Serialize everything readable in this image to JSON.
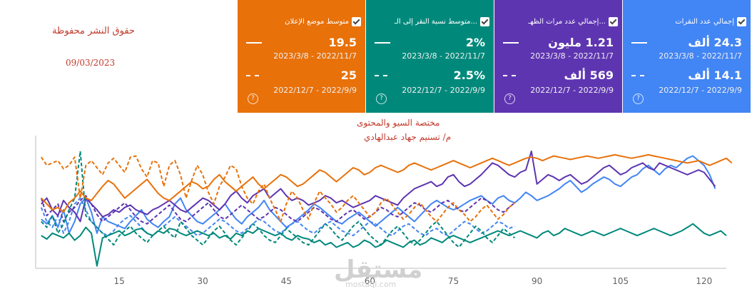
{
  "watermark": {
    "rights": "حقوق النشر محفوظة",
    "date": "09/03/2023",
    "author_line1": "مختصة السيو والمحتوى",
    "author_line2": "م/ تسنيم جهاد عبدالهادي",
    "logo": "مستقل",
    "logo_url": "mostaql.com"
  },
  "cards": [
    {
      "key": "clicks",
      "title": "إجمالي عدد النقرات",
      "color": "#4285f4",
      "current": "24.3 ألف",
      "current_range": "2023/3/8 - 2022/11/7",
      "previous": "14.1 ألف",
      "previous_range": "2022/12/7 - 2022/9/9",
      "left": 873
    },
    {
      "key": "impressions",
      "title": "إجمالي عدد مرات الظهـ...",
      "color": "#5e35b1",
      "current": "1.21 مليون",
      "current_range": "2023/3/8 - 2022/11/7",
      "previous": "569 ألف",
      "previous_range": "2022/12/7 - 2022/9/9",
      "left": 693
    },
    {
      "key": "ctr",
      "title": "متوسط نسبة النقر إلى الـ...",
      "color": "#00897b",
      "current": "2%",
      "current_range": "2023/3/8 - 2022/11/7",
      "previous": "2.5%",
      "previous_range": "2022/12/7 - 2022/9/9",
      "left": 513
    },
    {
      "key": "position",
      "title": "متوسط موضع الإعلان",
      "color": "#e8710a",
      "current": "19.5",
      "current_range": "2023/3/8 - 2022/11/7",
      "previous": "25",
      "previous_range": "2022/12/7 - 2022/9/9",
      "left": 333
    }
  ],
  "chart_data": {
    "type": "line",
    "x_ticks": [
      15,
      30,
      45,
      60,
      75,
      90,
      105,
      120
    ],
    "x_range": [
      0,
      124
    ],
    "y_range": [
      0,
      100
    ],
    "grid": false,
    "series": [
      {
        "metric": "clicks",
        "period": "current",
        "color": "#4285f4",
        "style": "solid",
        "values": [
          42,
          38,
          45,
          35,
          50,
          30,
          40,
          55,
          60,
          48,
          30,
          44,
          40,
          38,
          36,
          34,
          40,
          45,
          50,
          42,
          38,
          35,
          40,
          44,
          55,
          60,
          50,
          45,
          40,
          38,
          42,
          46,
          50,
          55,
          48,
          42,
          38,
          44,
          48,
          52,
          58,
          50,
          45,
          40,
          35,
          38,
          42,
          46,
          50,
          55,
          52,
          48,
          44,
          40,
          38,
          42,
          45,
          48,
          44,
          40,
          36,
          40,
          44,
          48,
          52,
          48,
          44,
          40,
          45,
          50,
          55,
          58,
          55,
          52,
          50,
          52,
          55,
          58,
          60,
          62,
          58,
          55,
          60,
          62,
          58,
          56,
          60,
          65,
          62,
          58,
          60,
          62,
          65,
          68,
          72,
          75,
          70,
          65,
          68,
          72,
          75,
          78,
          76,
          72,
          70,
          74,
          78,
          80,
          85,
          88,
          84,
          80,
          85,
          88,
          86,
          90,
          94,
          96,
          92,
          88,
          80,
          68
        ]
      },
      {
        "metric": "clicks",
        "period": "previous",
        "color": "#4285f4",
        "style": "dashed",
        "values": [
          52,
          40,
          35,
          45,
          30,
          40,
          55,
          60,
          50,
          40,
          35,
          30,
          28,
          32,
          38,
          42,
          45,
          40,
          35,
          30,
          28,
          32,
          36,
          40,
          44,
          40,
          36,
          32,
          28,
          30,
          34,
          38,
          42,
          40,
          36,
          32,
          30,
          34,
          38,
          42,
          40,
          36,
          32,
          30,
          34,
          38,
          40,
          36,
          32,
          30,
          34,
          38,
          40,
          36,
          32,
          30,
          28,
          32,
          36,
          40,
          38,
          34,
          30,
          28,
          32,
          36,
          38,
          34,
          30,
          28,
          32,
          34,
          30,
          28,
          32,
          36,
          40,
          38,
          34,
          30,
          32,
          36,
          40,
          38,
          34,
          36
        ]
      },
      {
        "metric": "impressions",
        "period": "current",
        "color": "#5e35b1",
        "style": "solid",
        "values": [
          55,
          60,
          50,
          45,
          58,
          52,
          48,
          40,
          60,
          55,
          50,
          44,
          46,
          50,
          48,
          52,
          54,
          50,
          48,
          46,
          50,
          52,
          55,
          58,
          54,
          50,
          48,
          52,
          56,
          60,
          58,
          54,
          50,
          55,
          62,
          66,
          60,
          56,
          62,
          65,
          68,
          60,
          64,
          68,
          62,
          58,
          60,
          58,
          54,
          56,
          58,
          62,
          60,
          56,
          58,
          55,
          52,
          54,
          56,
          58,
          62,
          60,
          58,
          56,
          54,
          60,
          64,
          68,
          70,
          72,
          74,
          70,
          72,
          78,
          80,
          74,
          70,
          72,
          76,
          80,
          85,
          90,
          88,
          84,
          80,
          78,
          82,
          84,
          100,
          72,
          76,
          80,
          78,
          75,
          78,
          80,
          76,
          72,
          74,
          78,
          82,
          86,
          88,
          84,
          80,
          82,
          86,
          88,
          90,
          86,
          84,
          90,
          88,
          86,
          84,
          82,
          80,
          82,
          84,
          82,
          76,
          70
        ]
      },
      {
        "metric": "impressions",
        "period": "previous",
        "color": "#5e35b1",
        "style": "dashed",
        "values": [
          60,
          45,
          50,
          55,
          40,
          48,
          52,
          58,
          62,
          55,
          46,
          40,
          44,
          48,
          52,
          56,
          50,
          44,
          40,
          38,
          42,
          46,
          50,
          54,
          48,
          42,
          40,
          44,
          48,
          52,
          56,
          50,
          44,
          42,
          46,
          50,
          54,
          50,
          46,
          42,
          44,
          48,
          52,
          50,
          46,
          42,
          40,
          44,
          48,
          52,
          50,
          46,
          42,
          40,
          44,
          48,
          50,
          46,
          42,
          44,
          48,
          52,
          50,
          46,
          44,
          48,
          52,
          56,
          54,
          50,
          48,
          52,
          56,
          58,
          54,
          50,
          48,
          52,
          56,
          60,
          58,
          54,
          50,
          48,
          52,
          56
        ]
      },
      {
        "metric": "ctr",
        "period": "current",
        "color": "#00897b",
        "style": "solid",
        "values": [
          28,
          25,
          30,
          28,
          26,
          30,
          24,
          28,
          35,
          30,
          2,
          26,
          28,
          30,
          32,
          28,
          30,
          33,
          34,
          30,
          28,
          32,
          30,
          34,
          33,
          30,
          28,
          30,
          32,
          30,
          28,
          30,
          26,
          28,
          25,
          30,
          28,
          32,
          30,
          34,
          32,
          30,
          28,
          30,
          26,
          24,
          28,
          26,
          25,
          22,
          24,
          20,
          22,
          18,
          20,
          22,
          18,
          20,
          24,
          22,
          18,
          20,
          24,
          22,
          20,
          18,
          22,
          24,
          20,
          22,
          26,
          24,
          22,
          26,
          28,
          26,
          24,
          22,
          24,
          26,
          28,
          30,
          32,
          30,
          28,
          30,
          32,
          30,
          28,
          26,
          30,
          32,
          28,
          30,
          34,
          32,
          30,
          28,
          30,
          32,
          30,
          28,
          30,
          32,
          34,
          32,
          30,
          28,
          30,
          32,
          34,
          32,
          30,
          28,
          30,
          32,
          35,
          38,
          34,
          30,
          28,
          30,
          32,
          28
        ]
      },
      {
        "metric": "ctr",
        "period": "previous",
        "color": "#00897b",
        "style": "dashed",
        "values": [
          40,
          35,
          45,
          30,
          38,
          50,
          60,
          100,
          45,
          40,
          35,
          30,
          25,
          20,
          28,
          32,
          36,
          30,
          26,
          22,
          28,
          32,
          36,
          30,
          26,
          40,
          34,
          28,
          24,
          20,
          26,
          32,
          36,
          30,
          24,
          20,
          26,
          32,
          38,
          34,
          28,
          24,
          22,
          28,
          34,
          30,
          26,
          22,
          20,
          26,
          32,
          38,
          34,
          28,
          24,
          30,
          36,
          40,
          34,
          28,
          24,
          20,
          26,
          32,
          36,
          30,
          24,
          20,
          24,
          30,
          36,
          40,
          34,
          28,
          22,
          18,
          24,
          30,
          36,
          32,
          26,
          22,
          28,
          34,
          30,
          26
        ]
      },
      {
        "metric": "position",
        "period": "current",
        "color": "#e8710a",
        "style": "solid",
        "values": [
          60,
          55,
          50,
          52,
          48,
          56,
          60,
          66,
          60,
          58,
          64,
          70,
          75,
          72,
          66,
          60,
          64,
          68,
          72,
          76,
          70,
          64,
          60,
          58,
          62,
          66,
          70,
          74,
          72,
          68,
          70,
          76,
          80,
          74,
          70,
          66,
          70,
          74,
          78,
          72,
          68,
          72,
          76,
          80,
          78,
          74,
          70,
          72,
          76,
          80,
          84,
          82,
          78,
          74,
          78,
          82,
          86,
          84,
          80,
          82,
          86,
          88,
          86,
          84,
          82,
          84,
          88,
          90,
          88,
          86,
          84,
          86,
          88,
          90,
          92,
          90,
          88,
          86,
          88,
          90,
          92,
          94,
          92,
          90,
          88,
          90,
          92,
          94,
          95,
          94,
          92,
          94,
          96,
          95,
          94,
          93,
          94,
          95,
          96,
          95,
          94,
          95,
          96,
          97,
          96,
          95,
          94,
          95,
          96,
          97,
          96,
          95,
          94,
          93,
          92,
          91,
          90,
          91,
          92,
          90,
          88,
          90,
          92,
          94,
          90
        ]
      },
      {
        "metric": "position",
        "period": "previous",
        "color": "#e8710a",
        "style": "dashed",
        "values": [
          95,
          88,
          90,
          92,
          85,
          88,
          95,
          60,
          88,
          92,
          86,
          80,
          90,
          94,
          88,
          82,
          95,
          96,
          85,
          78,
          92,
          90,
          70,
          88,
          92,
          80,
          60,
          75,
          88,
          80,
          65,
          55,
          70,
          78,
          88,
          85,
          70,
          60,
          55,
          66,
          72,
          60,
          50,
          40,
          55,
          66,
          60,
          50,
          42,
          56,
          66,
          60,
          55,
          48,
          52,
          58,
          62,
          56,
          50,
          44,
          48,
          56,
          60,
          54,
          48,
          42,
          46,
          52,
          56,
          50,
          44,
          40,
          46,
          52,
          56,
          50,
          46,
          40,
          44,
          50,
          54,
          48,
          42,
          46,
          52,
          56
        ]
      }
    ]
  }
}
